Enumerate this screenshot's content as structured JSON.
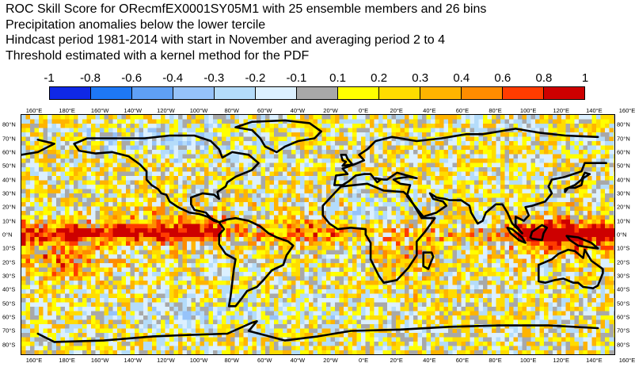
{
  "title": {
    "lines": [
      "ROC Skill Score for ORecmfEX0001SY05M1 with 25 ensemble members and 26 bins",
      "Precipitation anomalies below the lower tercile",
      "Hindcast period 1981-2014 with start in November and averaging period  2 to  4",
      "Threshold estimated with a kernel method for the PDF"
    ]
  },
  "colorbar": {
    "labels": [
      "-1",
      "-0.8",
      "-0.6",
      "-0.4",
      "-0.3",
      "-0.2",
      "-0.1",
      "0.1",
      "0.2",
      "0.3",
      "0.4",
      "0.6",
      "0.8",
      "1"
    ],
    "colors": [
      "#0f28e6",
      "#1e78f5",
      "#5fa0f5",
      "#96c3fa",
      "#b4dcfa",
      "#dcf0ff",
      "#a8a8a8",
      "#ffff00",
      "#ffdc00",
      "#ffb400",
      "#ff8c00",
      "#ff3c00",
      "#cd0000",
      "#780028"
    ]
  },
  "map": {
    "lon_labels": [
      "160°E",
      "180°E",
      "160°W",
      "140°W",
      "120°W",
      "100°W",
      "80°W",
      "60°W",
      "40°W",
      "20°W",
      "0°E",
      "20°E",
      "40°E",
      "60°E",
      "80°E",
      "100°E",
      "120°E",
      "140°E",
      "160°E"
    ],
    "lat_labels": [
      "80°N",
      "70°N",
      "60°N",
      "50°N",
      "40°N",
      "30°N",
      "20°N",
      "10°N",
      "0°N",
      "10°S",
      "20°S",
      "30°S",
      "40°S",
      "50°S",
      "60°S",
      "70°S",
      "80°S"
    ]
  }
}
